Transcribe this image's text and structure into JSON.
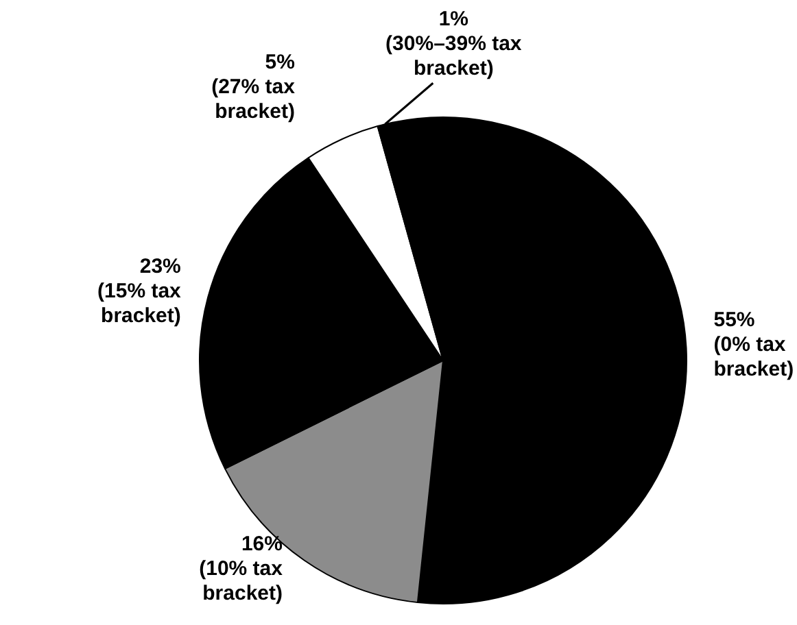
{
  "chart_data": {
    "type": "pie",
    "categories": [
      "(0% tax bracket)",
      "(10% tax bracket)",
      "(15% tax bracket)",
      "(27% tax bracket)",
      "(30%–39% tax bracket)"
    ],
    "values": [
      55,
      16,
      23,
      5,
      1
    ],
    "value_labels": [
      "55%",
      "16%",
      "23%",
      "5%",
      "1%"
    ],
    "colors": [
      "#000000",
      "#8c8c8c",
      "#000000",
      "#ffffff",
      "#000000"
    ]
  }
}
